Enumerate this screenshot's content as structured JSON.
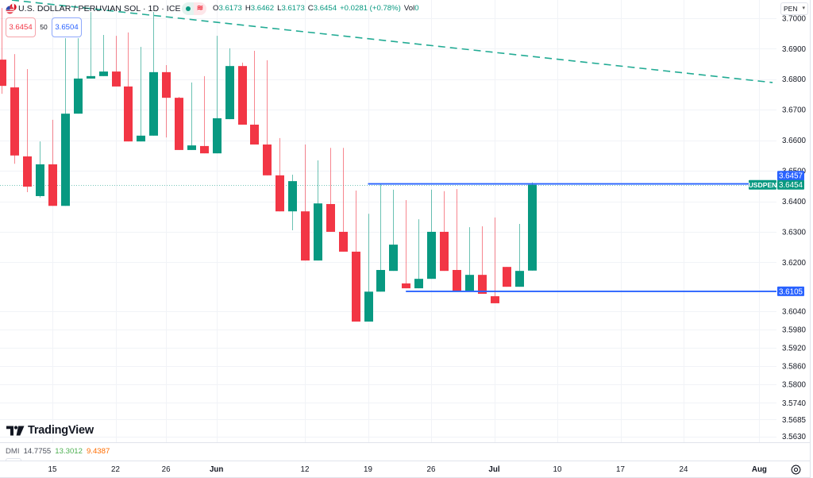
{
  "header": {
    "symbol_title": "U.S. DOLLAR / PERUVIAN SOL · 1D · ICE",
    "status_pill": {
      "market_status": "market-open-dot",
      "signal_icon": "≋"
    },
    "ohlc": {
      "open_label": "O",
      "open": "3.6173",
      "high_label": "H",
      "high": "3.6462",
      "low_label": "L",
      "low": "3.6173",
      "close_label": "C",
      "close": "3.6454",
      "change": "+0.0281 (+0.78%)",
      "volume_label": "Vol",
      "volume": "0"
    }
  },
  "trade_buttons": {
    "sell_price": "3.6454",
    "spread": "50",
    "buy_price": "3.6504"
  },
  "currency_selector": {
    "value": "PEN",
    "chevron": "▾"
  },
  "indicator_pane": {
    "name": "DMI",
    "values": [
      "14.7755",
      "13.3012",
      "9.4387"
    ]
  },
  "branding": {
    "logo_text": "TradingView"
  },
  "settings": {
    "icon": "gear-icon"
  },
  "colors": {
    "up": "#089981",
    "down": "#f23645",
    "drawing_blue": "#2962ff",
    "trendline": "#22ab94",
    "grid": "#f1f3f7",
    "text": "#131722",
    "border": "#e0e3eb"
  },
  "chart_data": {
    "type": "candlestick",
    "title": "U.S. DOLLAR / PERUVIAN SOL · 1D · ICE",
    "symbol": "USDPEN",
    "interval": "1D",
    "ylabel": "PEN",
    "ylim": [
      3.563,
      3.7059
    ],
    "grid": true,
    "y_ticks": [
      "3.7000",
      "3.6900",
      "3.6800",
      "3.6700",
      "3.6600",
      "3.6500",
      "3.6400",
      "3.6300",
      "3.6200",
      "3.6040",
      "3.5980",
      "3.5920",
      "3.5860",
      "3.5800",
      "3.5740",
      "3.5685",
      "3.5630"
    ],
    "x_ticks": [
      {
        "label": "15",
        "bar": 4,
        "month": false
      },
      {
        "label": "22",
        "bar": 9,
        "month": false
      },
      {
        "label": "26",
        "bar": 13,
        "month": false
      },
      {
        "label": "Jun",
        "bar": 17,
        "month": true
      },
      {
        "label": "12",
        "bar": 24,
        "month": false
      },
      {
        "label": "19",
        "bar": 29,
        "month": false
      },
      {
        "label": "26",
        "bar": 34,
        "month": false
      },
      {
        "label": "Jul",
        "bar": 39,
        "month": true
      },
      {
        "label": "10",
        "bar": 44,
        "month": false
      },
      {
        "label": "17",
        "bar": 49,
        "month": false
      },
      {
        "label": "24",
        "bar": 54,
        "month": false
      },
      {
        "label": "Aug",
        "bar": 60,
        "month": true
      }
    ],
    "candles_ohlc": [
      [
        3.6864,
        3.7033,
        3.6752,
        3.6778
      ],
      [
        3.6773,
        3.6882,
        3.6523,
        3.655
      ],
      [
        3.6547,
        3.6833,
        3.643,
        3.6448
      ],
      [
        3.6417,
        3.6596,
        3.6412,
        3.6521
      ],
      [
        3.6521,
        3.6667,
        3.6385,
        3.6385
      ],
      [
        3.6385,
        3.6934,
        3.6385,
        3.6687
      ],
      [
        3.6687,
        3.6934,
        3.6687,
        3.6802
      ],
      [
        3.6802,
        3.702,
        3.6802,
        3.681
      ],
      [
        3.681,
        3.6945,
        3.681,
        3.6825
      ],
      [
        3.6825,
        3.6942,
        3.6776,
        3.6776
      ],
      [
        3.6776,
        3.6953,
        3.6596,
        3.6596
      ],
      [
        3.6596,
        3.6906,
        3.6596,
        3.6615
      ],
      [
        3.6615,
        3.702,
        3.6615,
        3.6823
      ],
      [
        3.6823,
        3.6846,
        3.6609,
        3.6739
      ],
      [
        3.6739,
        3.6742,
        3.6568,
        3.6568
      ],
      [
        3.6568,
        3.6789,
        3.6568,
        3.6583
      ],
      [
        3.6581,
        3.681,
        3.6557,
        3.6557
      ],
      [
        3.6557,
        3.6942,
        3.6557,
        3.6672
      ],
      [
        3.6669,
        3.6901,
        3.6669,
        3.6843
      ],
      [
        3.6843,
        3.6854,
        3.6651,
        3.6651
      ],
      [
        3.6651,
        3.6893,
        3.6586,
        3.6586
      ],
      [
        3.6586,
        3.6862,
        3.6485,
        3.6485
      ],
      [
        3.6485,
        3.6607,
        3.6367,
        3.6367
      ],
      [
        3.6367,
        3.6487,
        3.6305,
        3.6466
      ],
      [
        3.6367,
        3.6586,
        3.6206,
        3.6206
      ],
      [
        3.6206,
        3.6534,
        3.6206,
        3.6393
      ],
      [
        3.6391,
        3.6575,
        3.63,
        3.63
      ],
      [
        3.63,
        3.6575,
        3.6235,
        3.6235
      ],
      [
        3.6235,
        3.6435,
        3.6006,
        3.6006
      ],
      [
        3.6006,
        3.6359,
        3.6006,
        3.6104
      ],
      [
        3.6104,
        3.6456,
        3.6104,
        3.6175
      ],
      [
        3.6172,
        3.6438,
        3.6172,
        3.6258
      ],
      [
        3.6131,
        3.6404,
        3.6115,
        3.6115
      ],
      [
        3.6115,
        3.6341,
        3.6115,
        3.6146
      ],
      [
        3.6146,
        3.6438,
        3.6146,
        3.63
      ],
      [
        3.63,
        3.6433,
        3.6172,
        3.6172
      ],
      [
        3.6175,
        3.644,
        3.6104,
        3.6104
      ],
      [
        3.6104,
        3.6315,
        3.6104,
        3.6159
      ],
      [
        3.6159,
        3.6318,
        3.6097,
        3.6097
      ],
      [
        3.6089,
        3.6347,
        3.6066,
        3.6066
      ],
      [
        3.6185,
        3.6185,
        3.612,
        3.612
      ],
      [
        3.612,
        3.6326,
        3.612,
        3.6172
      ],
      [
        3.6173,
        3.6462,
        3.6173,
        3.6454
      ]
    ],
    "last_price": {
      "price": 3.6454,
      "label": "3.6454",
      "symbol_label": "USDPEN"
    },
    "horizontal_lines": [
      {
        "price": 3.6457,
        "label": "3.6457",
        "from_bar": 29,
        "color": "#2962ff"
      },
      {
        "price": 3.6105,
        "label": "3.6105",
        "from_bar": 32,
        "color": "#2962ff"
      }
    ],
    "trend_lines": [
      {
        "from": {
          "bar": 0.79,
          "price": 3.7059
        },
        "to": {
          "bar": 61.05,
          "price": 3.6789
        },
        "style": "dashed",
        "color": "#22ab94"
      }
    ],
    "indicator": {
      "name": "DMI",
      "values": [
        14.7755,
        13.3012,
        9.4387
      ]
    }
  }
}
